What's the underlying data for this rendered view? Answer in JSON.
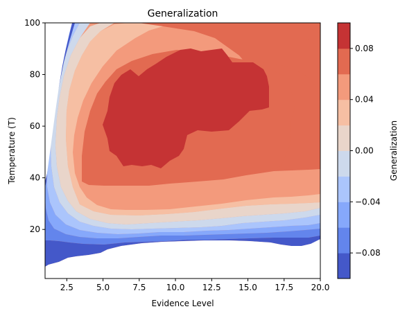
{
  "chart_data": {
    "type": "heatmap",
    "subtype": "filled-contour",
    "title": "Generalization",
    "xlabel": "Evidence Level",
    "ylabel": "Temperature (T)",
    "xlim": [
      1,
      20
    ],
    "ylim": [
      1,
      100
    ],
    "xticks": [
      "2.5",
      "5.0",
      "7.5",
      "10.0",
      "12.5",
      "15.0",
      "17.5",
      "20.0"
    ],
    "xtick_values": [
      2.5,
      5.0,
      7.5,
      10.0,
      12.5,
      15.0,
      17.5,
      20.0
    ],
    "yticks": [
      "20",
      "40",
      "60",
      "80",
      "100"
    ],
    "ytick_values": [
      20,
      40,
      60,
      80,
      100
    ],
    "colorbar": {
      "label": "Generalization",
      "range": [
        -0.1,
        0.1
      ],
      "ticks": [
        "0.08",
        "0.04",
        "0.00",
        "−0.04",
        "−0.08"
      ],
      "tick_values": [
        0.08,
        0.04,
        0.0,
        -0.04,
        -0.08
      ],
      "levels": [
        -0.1,
        -0.08,
        -0.06,
        -0.04,
        -0.02,
        0.0,
        0.02,
        0.04,
        0.06,
        0.08,
        0.1
      ],
      "colormap": "coolwarm",
      "colors": [
        "#4458c9",
        "#6385ec",
        "#86a8fb",
        "#abc5fc",
        "#cdd9ec",
        "#e9d5ca",
        "#f6bfa3",
        "#f39a7c",
        "#e26a51",
        "#c53334"
      ]
    },
    "regions": [
      {
        "level": "-0.10 to -0.08",
        "description": "far-left strip at x≈1-3 and bottom band y≈5-17"
      },
      {
        "level": "0.08 to 0.10",
        "description": "central maximum at x≈5-16.5, y≈43-90"
      }
    ]
  }
}
